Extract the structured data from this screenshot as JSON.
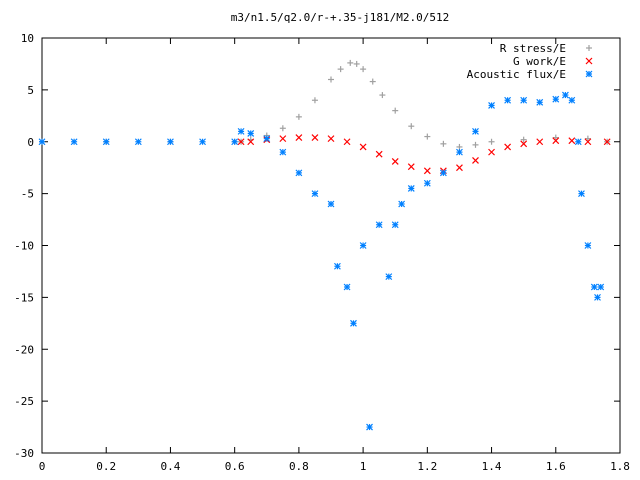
{
  "chart_data": {
    "type": "scatter",
    "title": "m3/n1.5/q2.0/r-+.35-j181/M2.0/512",
    "xlabel": "",
    "ylabel": "",
    "xlim": [
      0,
      1.8
    ],
    "ylim": [
      -30,
      10
    ],
    "x_ticks": [
      "0",
      "0.2",
      "0.4",
      "0.6",
      "0.8",
      "1",
      "1.2",
      "1.4",
      "1.6",
      "1.8"
    ],
    "y_ticks": [
      "10",
      "5",
      "0",
      "-5",
      "-10",
      "-15",
      "-20",
      "-25",
      "-30"
    ],
    "grid": false,
    "legend_position": "top-right",
    "series": [
      {
        "name": "R stress/E",
        "color": "#a0a0a0",
        "marker": "plus",
        "x": [
          0.0,
          0.2,
          0.4,
          0.6,
          0.62,
          0.65,
          0.7,
          0.75,
          0.8,
          0.85,
          0.9,
          0.93,
          0.96,
          0.98,
          1.0,
          1.03,
          1.06,
          1.1,
          1.15,
          1.2,
          1.25,
          1.3,
          1.35,
          1.4,
          1.5,
          1.6,
          1.7,
          1.76
        ],
        "y": [
          0.0,
          0.0,
          0.0,
          0.0,
          0.0,
          0.2,
          0.6,
          1.3,
          2.4,
          4.0,
          6.0,
          7.0,
          7.6,
          7.5,
          7.0,
          5.8,
          4.5,
          3.0,
          1.5,
          0.5,
          -0.2,
          -0.5,
          -0.3,
          0.0,
          0.2,
          0.4,
          0.3,
          0.0
        ]
      },
      {
        "name": "G work/E",
        "color": "#ff0000",
        "marker": "x",
        "x": [
          0.62,
          0.65,
          0.7,
          0.75,
          0.8,
          0.85,
          0.9,
          0.95,
          1.0,
          1.05,
          1.1,
          1.15,
          1.2,
          1.25,
          1.3,
          1.35,
          1.4,
          1.45,
          1.5,
          1.55,
          1.6,
          1.65,
          1.7,
          1.76
        ],
        "y": [
          0.0,
          0.0,
          0.2,
          0.3,
          0.4,
          0.4,
          0.3,
          0.0,
          -0.5,
          -1.2,
          -1.9,
          -2.4,
          -2.8,
          -2.8,
          -2.5,
          -1.8,
          -1.0,
          -0.5,
          -0.2,
          0.0,
          0.1,
          0.1,
          0.0,
          0.0
        ]
      },
      {
        "name": "Acoustic flux/E",
        "color": "#0080ff",
        "marker": "star",
        "x": [
          0.0,
          0.1,
          0.2,
          0.3,
          0.4,
          0.5,
          0.6,
          0.62,
          0.65,
          0.7,
          0.75,
          0.8,
          0.85,
          0.9,
          0.92,
          0.95,
          0.97,
          1.0,
          1.02,
          1.05,
          1.08,
          1.1,
          1.12,
          1.15,
          1.2,
          1.25,
          1.3,
          1.35,
          1.4,
          1.45,
          1.5,
          1.55,
          1.6,
          1.63,
          1.65,
          1.67,
          1.68,
          1.7,
          1.72,
          1.73,
          1.74
        ],
        "y": [
          0.0,
          0.0,
          0.0,
          0.0,
          0.0,
          0.0,
          0.0,
          1.0,
          0.8,
          0.3,
          -1.0,
          -3.0,
          -5.0,
          -6.0,
          -12.0,
          -14.0,
          -17.5,
          -10.0,
          -27.5,
          -8.0,
          -13.0,
          -8.0,
          -6.0,
          -4.5,
          -4.0,
          -3.0,
          -1.0,
          1.0,
          3.5,
          4.0,
          4.0,
          3.8,
          4.1,
          4.5,
          4.0,
          0.0,
          -5.0,
          -10.0,
          -14.0,
          -15.0,
          -14.0
        ]
      }
    ]
  }
}
